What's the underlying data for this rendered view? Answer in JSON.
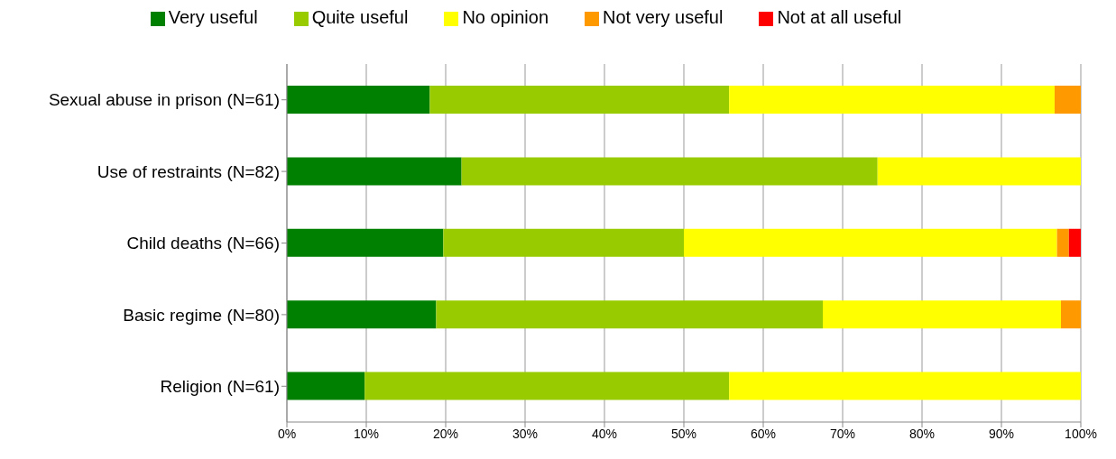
{
  "chart_data": {
    "type": "bar",
    "orientation": "horizontal",
    "stacked": true,
    "categories": [
      "Sexual abuse in prison (N=61)",
      "Use of restraints (N=82)",
      "Child deaths (N=66)",
      "Basic regime (N=80)",
      "Religion (N=61)"
    ],
    "series": [
      {
        "name": "Very useful",
        "color": "#008000",
        "values": [
          18.0,
          22.0,
          19.7,
          18.8,
          9.8
        ]
      },
      {
        "name": "Quite useful",
        "color": "#99cc00",
        "values": [
          37.7,
          52.4,
          30.3,
          48.7,
          45.9
        ]
      },
      {
        "name": "No opinion",
        "color": "#ffff00",
        "values": [
          41.0,
          25.6,
          47.0,
          30.0,
          44.3
        ]
      },
      {
        "name": "Not very useful",
        "color": "#ff9900",
        "values": [
          3.3,
          0,
          1.5,
          2.5,
          0
        ]
      },
      {
        "name": "Not at all useful",
        "color": "#ff0000",
        "values": [
          0,
          0,
          1.5,
          0,
          0
        ]
      }
    ],
    "xlim": [
      0,
      100
    ],
    "xticks": [
      {
        "value": 0,
        "label": "0%"
      },
      {
        "value": 10,
        "label": "10%"
      },
      {
        "value": 20,
        "label": "20%"
      },
      {
        "value": 30,
        "label": "30%"
      },
      {
        "value": 40,
        "label": "40%"
      },
      {
        "value": 50,
        "label": "50%"
      },
      {
        "value": 60,
        "label": "60%"
      },
      {
        "value": 70,
        "label": "70%"
      },
      {
        "value": 80,
        "label": "80%"
      },
      {
        "value": 90,
        "label": "90%"
      },
      {
        "value": 100,
        "label": "100%"
      }
    ],
    "grid": "x",
    "legend": "top"
  }
}
